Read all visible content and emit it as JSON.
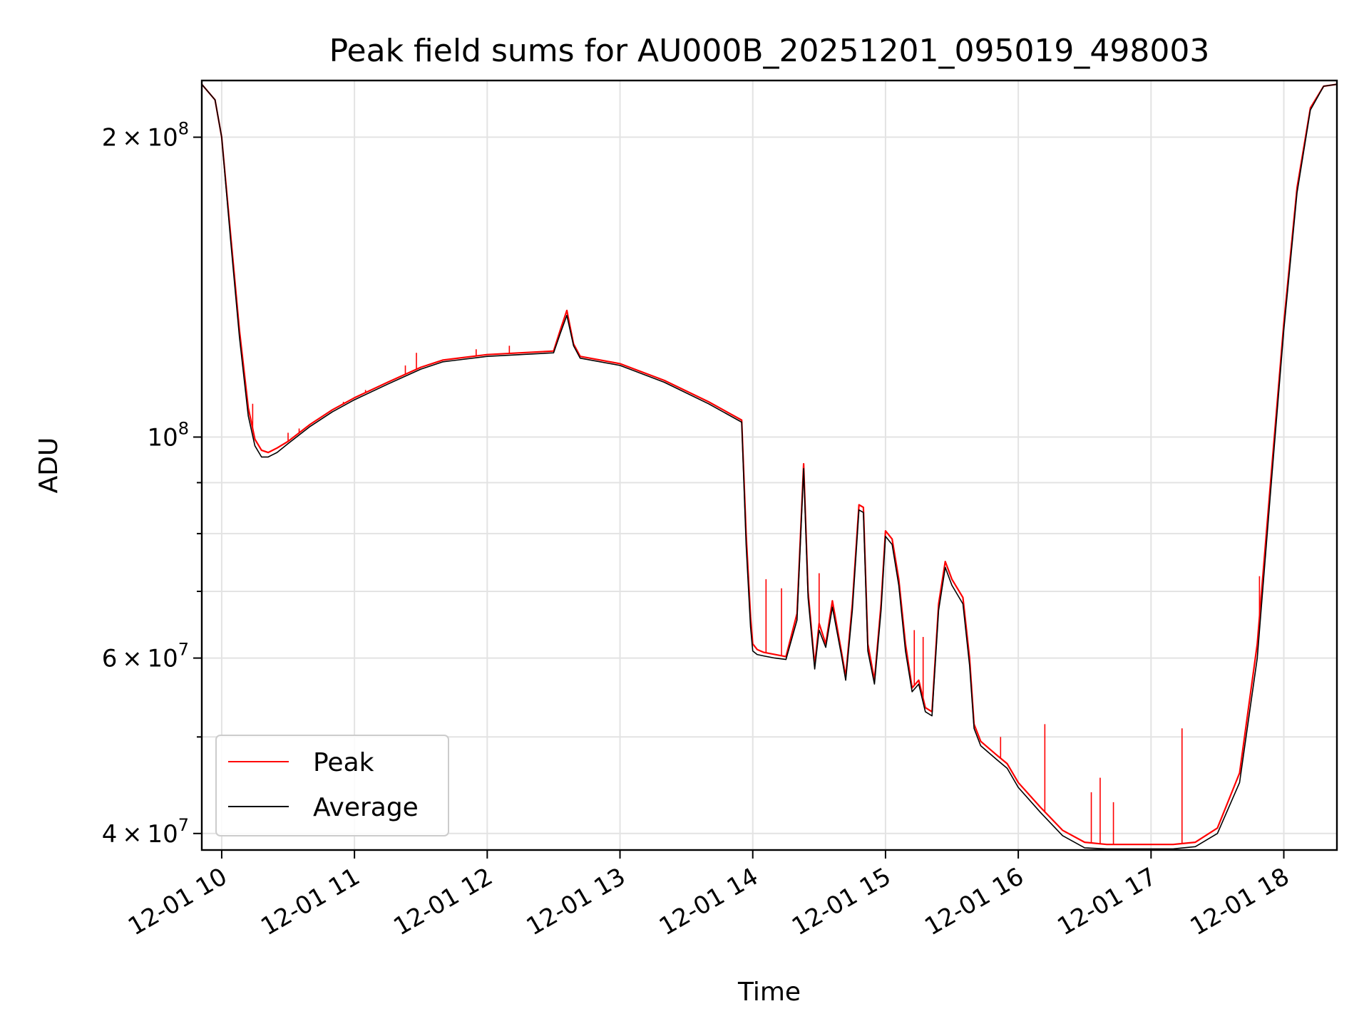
{
  "chart_data": {
    "type": "line",
    "title": "Peak field sums for AU000B_20251201_095019_498003",
    "xlabel": "Time",
    "ylabel": "ADU",
    "x_axis_kind": "time",
    "xlim": [
      "2025-12-01 09:51",
      "2025-12-01 18:24"
    ],
    "ylim": [
      38500000,
      228000000
    ],
    "yscale": "log",
    "grid": true,
    "legend_position": "lower-left",
    "x_ticks": [
      {
        "value": "2025-12-01 10:00",
        "label": "12-01 10"
      },
      {
        "value": "2025-12-01 11:00",
        "label": "12-01 11"
      },
      {
        "value": "2025-12-01 12:00",
        "label": "12-01 12"
      },
      {
        "value": "2025-12-01 13:00",
        "label": "12-01 13"
      },
      {
        "value": "2025-12-01 14:00",
        "label": "12-01 14"
      },
      {
        "value": "2025-12-01 15:00",
        "label": "12-01 15"
      },
      {
        "value": "2025-12-01 16:00",
        "label": "12-01 16"
      },
      {
        "value": "2025-12-01 17:00",
        "label": "12-01 17"
      },
      {
        "value": "2025-12-01 18:00",
        "label": "12-01 18"
      }
    ],
    "y_ticks": [
      {
        "value": 40000000,
        "mantissa": "4",
        "exponent": "7"
      },
      {
        "value": 60000000,
        "mantissa": "6",
        "exponent": "7"
      },
      {
        "value": 100000000,
        "mantissa": "",
        "exponent": "8"
      },
      {
        "value": 200000000,
        "mantissa": "2",
        "exponent": "8"
      }
    ],
    "y_minor_ticks": [
      50000000,
      70000000,
      80000000,
      90000000
    ],
    "series": [
      {
        "name": "Peak",
        "color": "#ff0000",
        "x": [
          "2025-12-01 09:51",
          "2025-12-01 09:57",
          "2025-12-01 10:00",
          "2025-12-01 10:04",
          "2025-12-01 10:08",
          "2025-12-01 10:12",
          "2025-12-01 10:15",
          "2025-12-01 10:18",
          "2025-12-01 10:21",
          "2025-12-01 10:25",
          "2025-12-01 10:30",
          "2025-12-01 10:40",
          "2025-12-01 10:50",
          "2025-12-01 11:00",
          "2025-12-01 11:15",
          "2025-12-01 11:30",
          "2025-12-01 11:40",
          "2025-12-01 12:00",
          "2025-12-01 12:15",
          "2025-12-01 12:30",
          "2025-12-01 12:33",
          "2025-12-01 12:36",
          "2025-12-01 12:39",
          "2025-12-01 12:42",
          "2025-12-01 13:00",
          "2025-12-01 13:20",
          "2025-12-01 13:40",
          "2025-12-01 13:55",
          "2025-12-01 13:57",
          "2025-12-01 13:59",
          "2025-12-01 14:00",
          "2025-12-01 14:02",
          "2025-12-01 14:05",
          "2025-12-01 14:10",
          "2025-12-01 14:15",
          "2025-12-01 14:20",
          "2025-12-01 14:23",
          "2025-12-01 14:25",
          "2025-12-01 14:28",
          "2025-12-01 14:30",
          "2025-12-01 14:33",
          "2025-12-01 14:36",
          "2025-12-01 14:40",
          "2025-12-01 14:42",
          "2025-12-01 14:45",
          "2025-12-01 14:48",
          "2025-12-01 14:50",
          "2025-12-01 14:52",
          "2025-12-01 14:55",
          "2025-12-01 14:58",
          "2025-12-01 15:00",
          "2025-12-01 15:03",
          "2025-12-01 15:06",
          "2025-12-01 15:09",
          "2025-12-01 15:12",
          "2025-12-01 15:15",
          "2025-12-01 15:18",
          "2025-12-01 15:21",
          "2025-12-01 15:24",
          "2025-12-01 15:27",
          "2025-12-01 15:30",
          "2025-12-01 15:35",
          "2025-12-01 15:38",
          "2025-12-01 15:40",
          "2025-12-01 15:43",
          "2025-12-01 15:50",
          "2025-12-01 15:55",
          "2025-12-01 16:00",
          "2025-12-01 16:10",
          "2025-12-01 16:20",
          "2025-12-01 16:30",
          "2025-12-01 16:40",
          "2025-12-01 16:50",
          "2025-12-01 17:00",
          "2025-12-01 17:10",
          "2025-12-01 17:20",
          "2025-12-01 17:30",
          "2025-12-01 17:40",
          "2025-12-01 17:48",
          "2025-12-01 17:54",
          "2025-12-01 18:00",
          "2025-12-01 18:06",
          "2025-12-01 18:12",
          "2025-12-01 18:18",
          "2025-12-01 18:24"
        ],
        "values": [
          226000000,
          218000000,
          200000000,
          160000000,
          128000000,
          107000000,
          99500000,
          97000000,
          96500000,
          97500000,
          99000000,
          103000000,
          106500000,
          109500000,
          113500000,
          117500000,
          119500000,
          121000000,
          121500000,
          122000000,
          128000000,
          134000000,
          124000000,
          120500000,
          118500000,
          114000000,
          108500000,
          104000000,
          80000000,
          66000000,
          62000000,
          61200000,
          60800000,
          60500000,
          60200000,
          66500000,
          94000000,
          70000000,
          59000000,
          65000000,
          62000000,
          68500000,
          61000000,
          57500000,
          68000000,
          85500000,
          85000000,
          62000000,
          57000000,
          68000000,
          80500000,
          79000000,
          72000000,
          62000000,
          56000000,
          57000000,
          53500000,
          53000000,
          68000000,
          75000000,
          72000000,
          69000000,
          60000000,
          51500000,
          49500000,
          48000000,
          47000000,
          45000000,
          42500000,
          40300000,
          39200000,
          39000000,
          39000000,
          39000000,
          39000000,
          39200000,
          40500000,
          46000000,
          62000000,
          90000000,
          130000000,
          178000000,
          214000000,
          225000000,
          226000000
        ]
      },
      {
        "name": "Average",
        "color": "#000000",
        "x": [
          "2025-12-01 09:51",
          "2025-12-01 09:57",
          "2025-12-01 10:00",
          "2025-12-01 10:04",
          "2025-12-01 10:08",
          "2025-12-01 10:12",
          "2025-12-01 10:15",
          "2025-12-01 10:18",
          "2025-12-01 10:21",
          "2025-12-01 10:25",
          "2025-12-01 10:30",
          "2025-12-01 10:40",
          "2025-12-01 10:50",
          "2025-12-01 11:00",
          "2025-12-01 11:15",
          "2025-12-01 11:30",
          "2025-12-01 11:40",
          "2025-12-01 12:00",
          "2025-12-01 12:15",
          "2025-12-01 12:30",
          "2025-12-01 12:33",
          "2025-12-01 12:36",
          "2025-12-01 12:39",
          "2025-12-01 12:42",
          "2025-12-01 13:00",
          "2025-12-01 13:20",
          "2025-12-01 13:40",
          "2025-12-01 13:55",
          "2025-12-01 13:57",
          "2025-12-01 13:59",
          "2025-12-01 14:00",
          "2025-12-01 14:02",
          "2025-12-01 14:05",
          "2025-12-01 14:10",
          "2025-12-01 14:15",
          "2025-12-01 14:20",
          "2025-12-01 14:23",
          "2025-12-01 14:25",
          "2025-12-01 14:28",
          "2025-12-01 14:30",
          "2025-12-01 14:33",
          "2025-12-01 14:36",
          "2025-12-01 14:40",
          "2025-12-01 14:42",
          "2025-12-01 14:45",
          "2025-12-01 14:48",
          "2025-12-01 14:50",
          "2025-12-01 14:52",
          "2025-12-01 14:55",
          "2025-12-01 14:58",
          "2025-12-01 15:00",
          "2025-12-01 15:03",
          "2025-12-01 15:06",
          "2025-12-01 15:09",
          "2025-12-01 15:12",
          "2025-12-01 15:15",
          "2025-12-01 15:18",
          "2025-12-01 15:21",
          "2025-12-01 15:24",
          "2025-12-01 15:27",
          "2025-12-01 15:30",
          "2025-12-01 15:35",
          "2025-12-01 15:38",
          "2025-12-01 15:40",
          "2025-12-01 15:43",
          "2025-12-01 15:50",
          "2025-12-01 15:55",
          "2025-12-01 16:00",
          "2025-12-01 16:10",
          "2025-12-01 16:20",
          "2025-12-01 16:30",
          "2025-12-01 16:40",
          "2025-12-01 16:50",
          "2025-12-01 17:00",
          "2025-12-01 17:10",
          "2025-12-01 17:20",
          "2025-12-01 17:30",
          "2025-12-01 17:40",
          "2025-12-01 17:48",
          "2025-12-01 17:54",
          "2025-12-01 18:00",
          "2025-12-01 18:06",
          "2025-12-01 18:12",
          "2025-12-01 18:18",
          "2025-12-01 18:24"
        ],
        "values": [
          226000000,
          218000000,
          200000000,
          158000000,
          126000000,
          105000000,
          98000000,
          95500000,
          95500000,
          96500000,
          98500000,
          102500000,
          106000000,
          109000000,
          113000000,
          117000000,
          119000000,
          120500000,
          121000000,
          121500000,
          127000000,
          132500000,
          123500000,
          120000000,
          118000000,
          113500000,
          108000000,
          103500000,
          78000000,
          64500000,
          61000000,
          60500000,
          60300000,
          60000000,
          59800000,
          65500000,
          93000000,
          69000000,
          58500000,
          64000000,
          61500000,
          67500000,
          60500000,
          57000000,
          67000000,
          84500000,
          84000000,
          61000000,
          56500000,
          67000000,
          79500000,
          78000000,
          71000000,
          61000000,
          55500000,
          56500000,
          53000000,
          52500000,
          67000000,
          74000000,
          71000000,
          68000000,
          59000000,
          51000000,
          49000000,
          47500000,
          46500000,
          44500000,
          42000000,
          39800000,
          38700000,
          38600000,
          38600000,
          38600000,
          38600000,
          38800000,
          40000000,
          45000000,
          60000000,
          88000000,
          128000000,
          176000000,
          213000000,
          225000000,
          226000000
        ]
      }
    ],
    "peak_spikes": [
      {
        "x": "2025-12-01 10:14",
        "y": 108000000
      },
      {
        "x": "2025-12-01 10:30",
        "y": 101000000
      },
      {
        "x": "2025-12-01 10:35",
        "y": 102000000
      },
      {
        "x": "2025-12-01 10:55",
        "y": 108500000
      },
      {
        "x": "2025-12-01 11:05",
        "y": 111500000
      },
      {
        "x": "2025-12-01 11:23",
        "y": 118000000
      },
      {
        "x": "2025-12-01 11:28",
        "y": 121500000
      },
      {
        "x": "2025-12-01 11:55",
        "y": 122500000
      },
      {
        "x": "2025-12-01 12:10",
        "y": 123500000
      },
      {
        "x": "2025-12-01 14:06",
        "y": 72000000
      },
      {
        "x": "2025-12-01 14:13",
        "y": 70500000
      },
      {
        "x": "2025-12-01 14:30",
        "y": 73000000
      },
      {
        "x": "2025-12-01 15:13",
        "y": 64000000
      },
      {
        "x": "2025-12-01 15:17",
        "y": 63000000
      },
      {
        "x": "2025-12-01 15:52",
        "y": 50000000
      },
      {
        "x": "2025-12-01 16:12",
        "y": 51500000
      },
      {
        "x": "2025-12-01 16:33",
        "y": 44000000
      },
      {
        "x": "2025-12-01 16:37",
        "y": 45500000
      },
      {
        "x": "2025-12-01 16:43",
        "y": 43000000
      },
      {
        "x": "2025-12-01 17:14",
        "y": 51000000
      },
      {
        "x": "2025-12-01 17:49",
        "y": 72500000
      }
    ],
    "legend": [
      {
        "label": "Peak",
        "color": "#ff0000"
      },
      {
        "label": "Average",
        "color": "#000000"
      }
    ]
  }
}
